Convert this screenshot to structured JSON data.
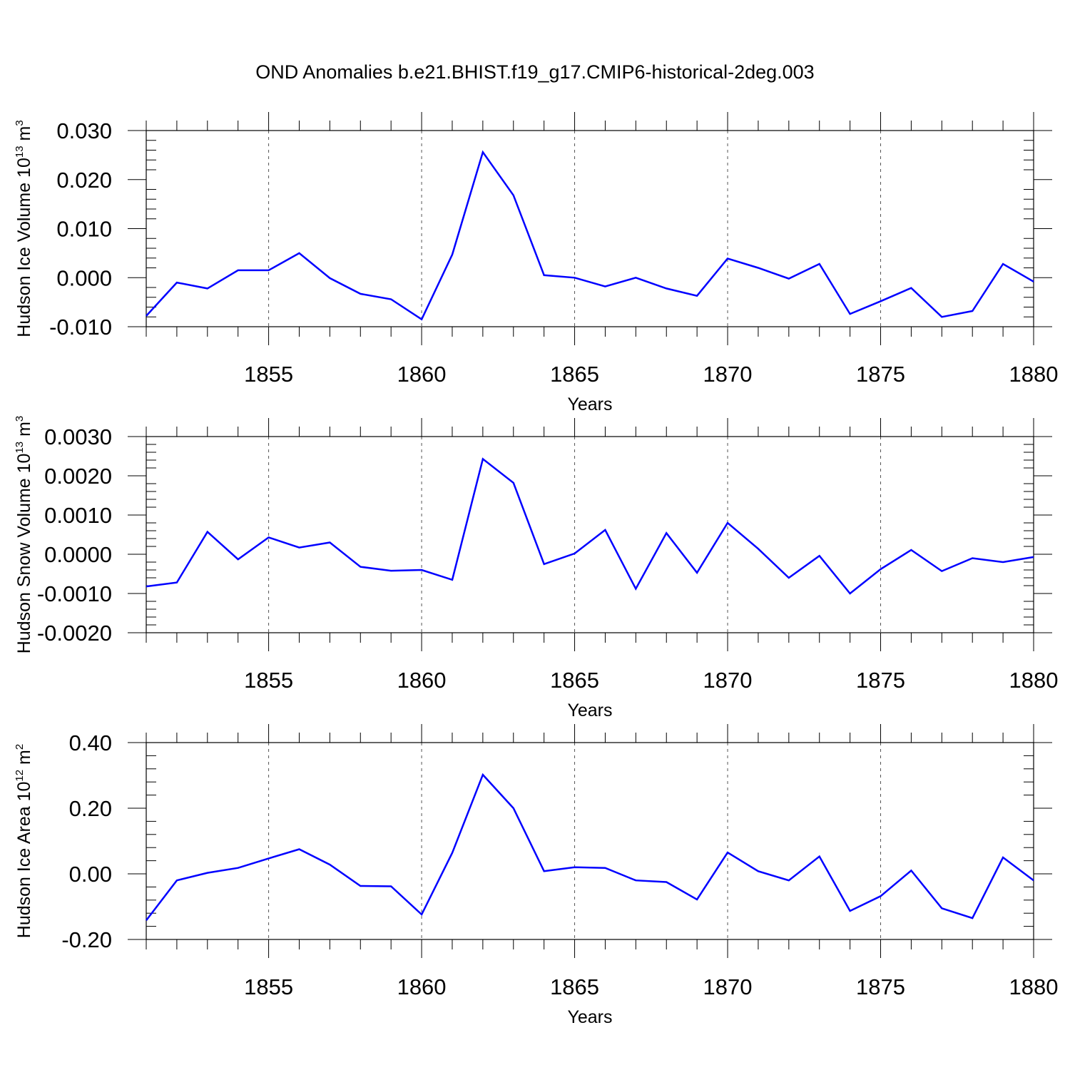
{
  "title": "OND Anomalies b.e21.BHIST.f19_g17.CMIP6-historical-2deg.003",
  "colors": {
    "line": "#0000ff",
    "axes": "#000000",
    "grid": "#555555"
  },
  "chart_data": [
    {
      "type": "line",
      "ylabel_main": "Hudson Ice Volume 10",
      "ylabel_exp": "13",
      "ylabel_unit": " m",
      "ylabel_unit_exp": "3",
      "xlabel": "Years",
      "xlim": [
        1851,
        1880
      ],
      "ylim": [
        -0.01,
        0.03
      ],
      "yticks": [
        -0.01,
        0.0,
        0.01,
        0.02,
        0.03
      ],
      "ytick_labels": [
        "-0.010",
        "0.000",
        "0.010",
        "0.020",
        "0.030"
      ],
      "xticks": [
        1855,
        1860,
        1865,
        1870,
        1875,
        1880
      ],
      "xtick_labels": [
        "1855",
        "1860",
        "1865",
        "1870",
        "1875",
        "1880"
      ],
      "grid": "dashed vertical at major x ticks",
      "x": [
        1851,
        1852,
        1853,
        1854,
        1855,
        1856,
        1857,
        1858,
        1859,
        1860,
        1861,
        1862,
        1863,
        1864,
        1865,
        1866,
        1867,
        1868,
        1869,
        1870,
        1871,
        1872,
        1873,
        1874,
        1875,
        1876,
        1877,
        1878,
        1879,
        1880
      ],
      "series": [
        {
          "name": "Hudson Ice Volume",
          "values": [
            -0.0078,
            -0.001,
            -0.0022,
            0.0015,
            0.0015,
            0.005,
            -0.0001,
            -0.0033,
            -0.0044,
            -0.0085,
            0.0047,
            0.0256,
            0.0168,
            0.0005,
            0.0,
            -0.0018,
            0.0,
            -0.0022,
            -0.0037,
            0.0039,
            0.002,
            -0.0002,
            0.0028,
            -0.0074,
            -0.0048,
            -0.0021,
            -0.008,
            -0.0068,
            0.0028,
            -0.0008
          ]
        }
      ]
    },
    {
      "type": "line",
      "ylabel_main": "Hudson Snow Volume 10",
      "ylabel_exp": "13",
      "ylabel_unit": " m",
      "ylabel_unit_exp": "3",
      "xlabel": "Years",
      "xlim": [
        1851,
        1880
      ],
      "ylim": [
        -0.002,
        0.003
      ],
      "yticks": [
        -0.002,
        -0.001,
        0.0,
        0.001,
        0.002,
        0.003
      ],
      "ytick_labels": [
        "-0.0020",
        "-0.0010",
        "0.0000",
        "0.0010",
        "0.0020",
        "0.0030"
      ],
      "xticks": [
        1855,
        1860,
        1865,
        1870,
        1875,
        1880
      ],
      "xtick_labels": [
        "1855",
        "1860",
        "1865",
        "1870",
        "1875",
        "1880"
      ],
      "grid": "dashed vertical at major x ticks",
      "x": [
        1851,
        1852,
        1853,
        1854,
        1855,
        1856,
        1857,
        1858,
        1859,
        1860,
        1861,
        1862,
        1863,
        1864,
        1865,
        1866,
        1867,
        1868,
        1869,
        1870,
        1871,
        1872,
        1873,
        1874,
        1875,
        1876,
        1877,
        1878,
        1879,
        1880
      ],
      "series": [
        {
          "name": "Hudson Snow Volume",
          "values": [
            -0.00082,
            -0.00072,
            0.00057,
            -0.00013,
            0.00043,
            0.00017,
            0.0003,
            -0.00032,
            -0.00042,
            -0.0004,
            -0.00065,
            0.00243,
            0.00182,
            -0.00025,
            2e-05,
            0.00062,
            -0.00088,
            0.00054,
            -0.00047,
            0.0008,
            0.00014,
            -0.0006,
            -4e-05,
            -0.001,
            -0.00038,
            0.00011,
            -0.00043,
            -0.0001,
            -0.0002,
            -7e-05
          ]
        }
      ]
    },
    {
      "type": "line",
      "ylabel_main": "Hudson Ice Area 10",
      "ylabel_exp": "12",
      "ylabel_unit": " m",
      "ylabel_unit_exp": "2",
      "xlabel": "Years",
      "xlim": [
        1851,
        1880
      ],
      "ylim": [
        -0.2,
        0.4
      ],
      "yticks": [
        -0.2,
        0.0,
        0.2,
        0.4
      ],
      "ytick_labels": [
        "-0.20",
        "0.00",
        "0.20",
        "0.40"
      ],
      "xticks": [
        1855,
        1860,
        1865,
        1870,
        1875,
        1880
      ],
      "xtick_labels": [
        "1855",
        "1860",
        "1865",
        "1870",
        "1875",
        "1880"
      ],
      "grid": "dashed vertical at major x ticks",
      "x": [
        1851,
        1852,
        1853,
        1854,
        1855,
        1856,
        1857,
        1858,
        1859,
        1860,
        1861,
        1862,
        1863,
        1864,
        1865,
        1866,
        1867,
        1868,
        1869,
        1870,
        1871,
        1872,
        1873,
        1874,
        1875,
        1876,
        1877,
        1878,
        1879,
        1880
      ],
      "series": [
        {
          "name": "Hudson Ice Area",
          "values": [
            -0.142,
            -0.02,
            0.003,
            0.018,
            0.047,
            0.075,
            0.028,
            -0.037,
            -0.038,
            -0.124,
            0.064,
            0.302,
            0.2,
            0.008,
            0.02,
            0.018,
            -0.02,
            -0.025,
            -0.078,
            0.065,
            0.008,
            -0.02,
            0.053,
            -0.113,
            -0.068,
            0.01,
            -0.105,
            -0.135,
            0.05,
            -0.02
          ]
        }
      ]
    }
  ]
}
